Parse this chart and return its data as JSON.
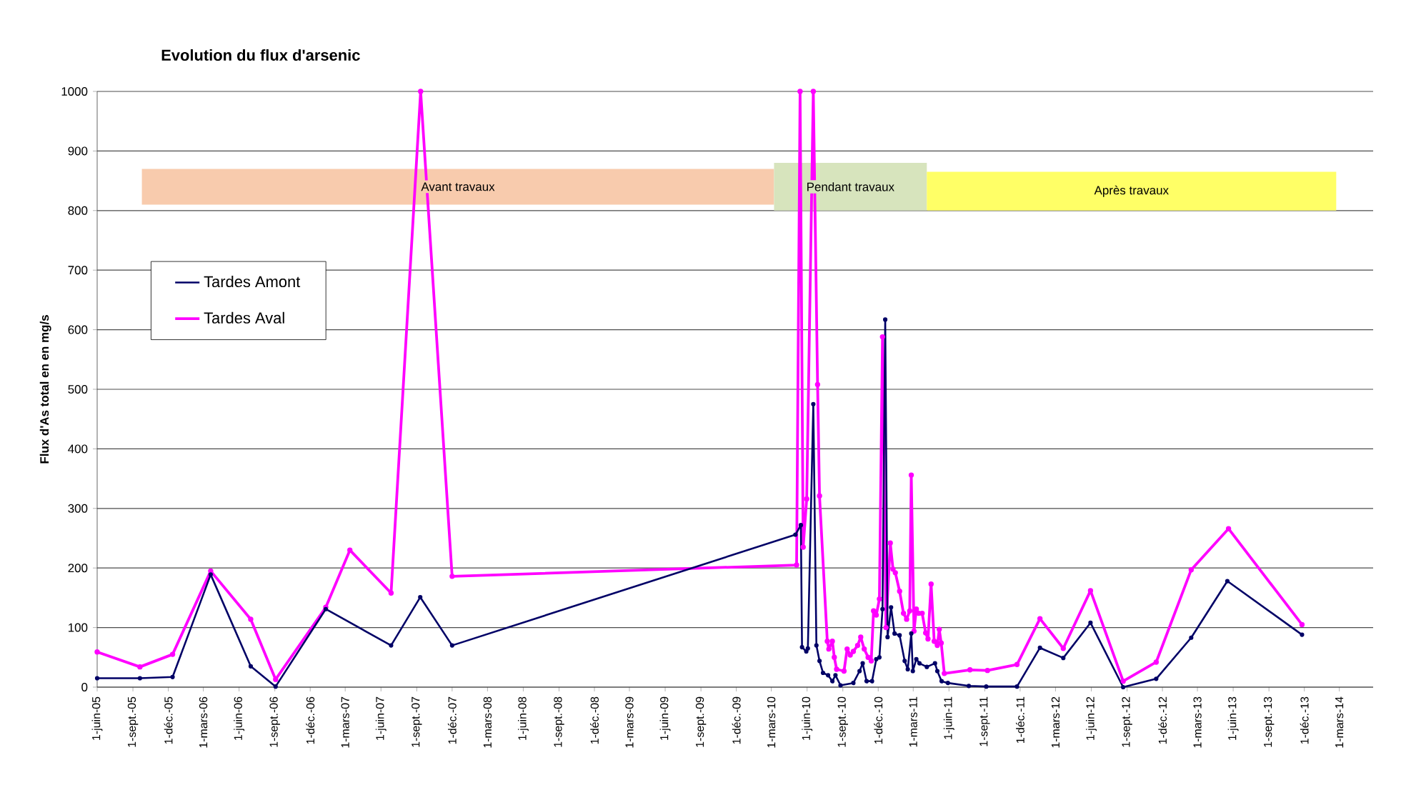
{
  "chart_data": {
    "type": "line",
    "title": "Evolution du flux d'arsenic",
    "ylabel": "Flux d'As total en en mg/s",
    "xlim": [
      "2005-06-01",
      "2014-05-27"
    ],
    "ylim": [
      0,
      1000
    ],
    "yticks": [
      0,
      100,
      200,
      300,
      400,
      500,
      600,
      700,
      800,
      900,
      1000
    ],
    "xticks": [
      {
        "value": "2005-06-01",
        "label": "1-juin-05"
      },
      {
        "value": "2005-09-01",
        "label": "1-sept.-05"
      },
      {
        "value": "2005-12-01",
        "label": "1-déc.-05"
      },
      {
        "value": "2006-03-01",
        "label": "1-mars-06"
      },
      {
        "value": "2006-06-01",
        "label": "1-juin-06"
      },
      {
        "value": "2006-09-01",
        "label": "1-sept.-06"
      },
      {
        "value": "2006-12-01",
        "label": "1-déc.-06"
      },
      {
        "value": "2007-03-01",
        "label": "1-mars-07"
      },
      {
        "value": "2007-06-01",
        "label": "1-juin-07"
      },
      {
        "value": "2007-09-01",
        "label": "1-sept.-07"
      },
      {
        "value": "2007-12-01",
        "label": "1-déc.-07"
      },
      {
        "value": "2008-03-01",
        "label": "1-mars-08"
      },
      {
        "value": "2008-06-01",
        "label": "1-juin-08"
      },
      {
        "value": "2008-09-01",
        "label": "1-sept.-08"
      },
      {
        "value": "2008-12-01",
        "label": "1-déc.-08"
      },
      {
        "value": "2009-03-01",
        "label": "1-mars-09"
      },
      {
        "value": "2009-06-01",
        "label": "1-juin-09"
      },
      {
        "value": "2009-09-01",
        "label": "1-sept.-09"
      },
      {
        "value": "2009-12-01",
        "label": "1-déc.-09"
      },
      {
        "value": "2010-03-01",
        "label": "1-mars-10"
      },
      {
        "value": "2010-06-01",
        "label": "1-juin-10"
      },
      {
        "value": "2010-09-01",
        "label": "1-sept.-10"
      },
      {
        "value": "2010-12-01",
        "label": "1-déc.-10"
      },
      {
        "value": "2011-03-01",
        "label": "1-mars-11"
      },
      {
        "value": "2011-06-01",
        "label": "1-juin-11"
      },
      {
        "value": "2011-09-01",
        "label": "1-sept.-11"
      },
      {
        "value": "2011-12-01",
        "label": "1-déc.-11"
      },
      {
        "value": "2012-03-01",
        "label": "1-mars-12"
      },
      {
        "value": "2012-06-01",
        "label": "1-juin-12"
      },
      {
        "value": "2012-09-01",
        "label": "1-sept.-12"
      },
      {
        "value": "2012-12-01",
        "label": "1-déc.-12"
      },
      {
        "value": "2013-03-01",
        "label": "1-mars-13"
      },
      {
        "value": "2013-06-01",
        "label": "1-juin-13"
      },
      {
        "value": "2013-09-01",
        "label": "1-sept.-13"
      },
      {
        "value": "2013-12-01",
        "label": "1-déc.-13"
      },
      {
        "value": "2014-03-01",
        "label": "1-mars-14"
      }
    ],
    "grid": "y",
    "legend": "left",
    "marker": "circle",
    "line_style": "solid",
    "bands": [
      {
        "axis": "x",
        "from": "2005-09-24",
        "to": "2010-03-08",
        "label": "Avant travaux",
        "color": "#f8cbad"
      },
      {
        "axis": "x",
        "from": "2010-03-08",
        "to": "2011-04-05",
        "label": "Pendant  travaux",
        "color": "#d7e4bd"
      },
      {
        "axis": "x",
        "from": "2011-04-05",
        "to": "2014-02-21",
        "label": "Après travaux",
        "color": "#ffff66"
      }
    ],
    "series": [
      {
        "name": "Tardes Amont",
        "color": "#000066",
        "x": [
          "2005-06-01",
          "2005-09-19",
          "2005-12-12",
          "2006-03-20",
          "2006-07-01",
          "2006-09-03",
          "2007-01-10",
          "2007-06-27",
          "2007-09-10",
          "2007-12-01",
          "2010-05-02",
          "2010-05-16",
          "2010-05-19",
          "2010-05-30",
          "2010-06-03",
          "2010-06-17",
          "2010-06-25",
          "2010-07-03",
          "2010-07-12",
          "2010-07-25",
          "2010-08-05",
          "2010-08-13",
          "2010-08-26",
          "2010-09-28",
          "2010-10-14",
          "2010-10-22",
          "2010-11-01",
          "2010-11-15",
          "2010-11-26",
          "2010-12-04",
          "2010-12-12",
          "2010-12-19",
          "2010-12-25",
          "2011-01-03",
          "2011-01-12",
          "2011-01-25",
          "2011-02-07",
          "2011-02-15",
          "2011-02-24",
          "2011-02-28",
          "2011-03-09",
          "2011-03-17",
          "2011-04-05",
          "2011-04-26",
          "2011-05-02",
          "2011-05-13",
          "2011-05-29",
          "2011-07-22",
          "2011-09-05",
          "2011-11-23",
          "2012-01-21",
          "2012-03-21",
          "2012-05-30",
          "2012-08-22",
          "2012-11-15",
          "2013-02-13",
          "2013-05-17",
          "2013-11-25"
        ],
        "values": [
          15,
          15,
          17,
          189,
          35,
          1,
          131,
          70,
          151,
          70,
          256,
          272,
          67,
          60,
          65,
          475,
          70,
          44,
          24,
          20,
          10,
          20,
          3,
          7,
          27,
          40,
          10,
          10,
          47,
          50,
          131,
          617,
          84,
          134,
          90,
          87,
          44,
          30,
          90,
          27,
          47,
          40,
          34,
          40,
          27,
          10,
          7,
          2,
          1,
          1,
          66,
          49,
          108,
          0,
          14,
          83,
          178,
          88
        ]
      },
      {
        "name": "Tardes Aval",
        "color": "#ff00ff",
        "x": [
          "2005-06-01",
          "2005-09-19",
          "2005-12-12",
          "2006-03-20",
          "2006-07-01",
          "2006-09-03",
          "2007-01-10",
          "2007-03-13",
          "2007-06-27",
          "2007-09-11",
          "2007-12-01",
          "2010-05-05",
          "2010-05-14",
          "2010-05-22",
          "2010-05-31",
          "2010-06-17",
          "2010-06-28",
          "2010-07-03",
          "2010-07-23",
          "2010-07-27",
          "2010-08-05",
          "2010-08-10",
          "2010-08-16",
          "2010-09-04",
          "2010-09-12",
          "2010-09-20",
          "2010-09-28",
          "2010-10-09",
          "2010-10-17",
          "2010-10-26",
          "2010-11-05",
          "2010-11-13",
          "2010-11-19",
          "2010-11-26",
          "2010-12-04",
          "2010-12-12",
          "2010-12-21",
          "2011-01-01",
          "2011-01-08",
          "2011-01-14",
          "2011-01-25",
          "2011-02-04",
          "2011-02-12",
          "2011-02-20",
          "2011-02-24",
          "2011-03-03",
          "2011-03-09",
          "2011-03-15",
          "2011-03-24",
          "2011-04-02",
          "2011-04-08",
          "2011-04-16",
          "2011-04-24",
          "2011-05-02",
          "2011-05-07",
          "2011-05-12",
          "2011-05-20",
          "2011-07-25",
          "2011-09-08",
          "2011-11-23",
          "2012-01-21",
          "2012-03-21",
          "2012-05-30",
          "2012-08-22",
          "2012-11-15",
          "2013-02-13",
          "2013-05-20",
          "2013-11-25"
        ],
        "values": [
          59,
          34,
          55,
          195,
          114,
          13,
          134,
          230,
          158,
          1000,
          186,
          205,
          1000,
          235,
          316,
          1000,
          508,
          321,
          77,
          64,
          77,
          50,
          30,
          27,
          64,
          54,
          60,
          70,
          84,
          64,
          50,
          44,
          128,
          121,
          148,
          588,
          100,
          242,
          198,
          192,
          161,
          124,
          114,
          128,
          356,
          94,
          131,
          124,
          124,
          91,
          81,
          173,
          77,
          70,
          97,
          74,
          23,
          29,
          28,
          38,
          115,
          65,
          162,
          10,
          42,
          197,
          266,
          105
        ]
      }
    ]
  }
}
